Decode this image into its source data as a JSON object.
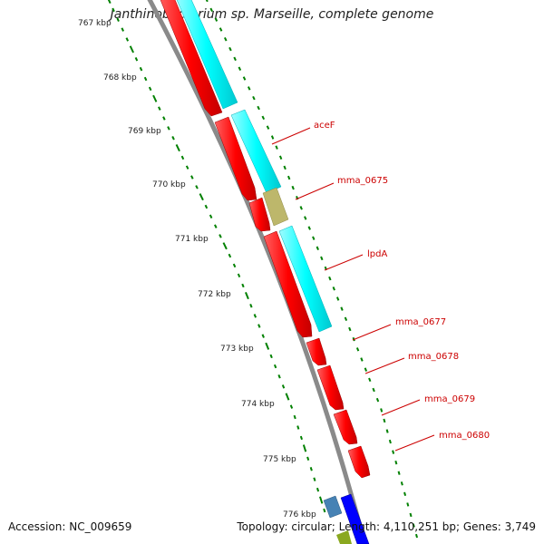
{
  "map": {
    "title": "Janthinobacterium sp. Marseille, complete genome",
    "accession_text": "Accession: NC_009659",
    "topology_text": "Topology: circular; Length: 4,110,251 bp; Genes: 3,749",
    "ruler_labels": [
      "767 kbp",
      "768 kbp",
      "769 kbp",
      "770 kbp",
      "771 kbp",
      "772 kbp",
      "773 kbp",
      "774 kbp",
      "775 kbp",
      "776 kbp"
    ],
    "gene_labels": [
      "aceF",
      "mma_0675",
      "lpdA",
      "mma_0677",
      "mma_0678",
      "mma_0679",
      "mma_0680"
    ],
    "colors": {
      "cds_forward": "#ff0000",
      "cds_alt": "#00ffff",
      "misc_feature": "#bdb76b",
      "gene_steelblue": "#4682b4",
      "gene_blue": "#0000ff",
      "backbone": "#8a8a8a",
      "ruler": "#008000",
      "label": "#cc0000"
    }
  }
}
